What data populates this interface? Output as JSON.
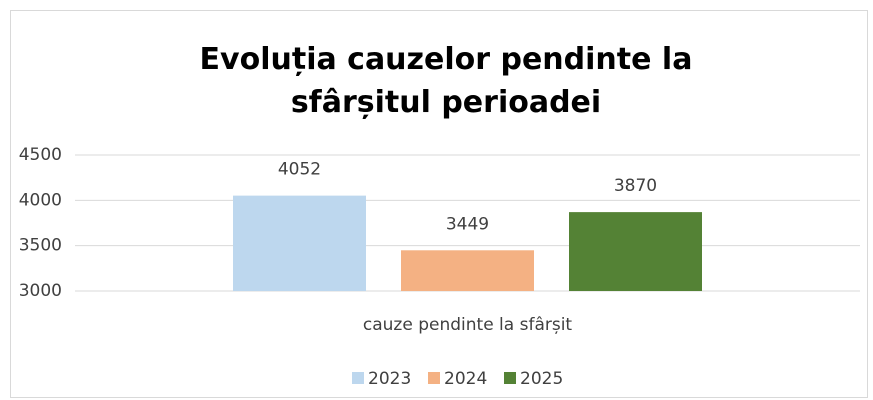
{
  "chart_data": {
    "type": "bar",
    "title": "Evoluția cauzelor pendinte la sfârșitul perioadei",
    "categories": [
      "cauze pendinte la sfârșit"
    ],
    "series": [
      {
        "name": "2023",
        "color": "#bdd7ee",
        "values": [
          4052
        ]
      },
      {
        "name": "2024",
        "color": "#f4b183",
        "values": [
          3449
        ]
      },
      {
        "name": "2025",
        "color": "#548235",
        "values": [
          3870
        ]
      }
    ],
    "ylim": [
      3000,
      4500
    ],
    "yticks": [
      3000,
      3500,
      4000,
      4500
    ],
    "grid": true,
    "legend": "bottom"
  }
}
